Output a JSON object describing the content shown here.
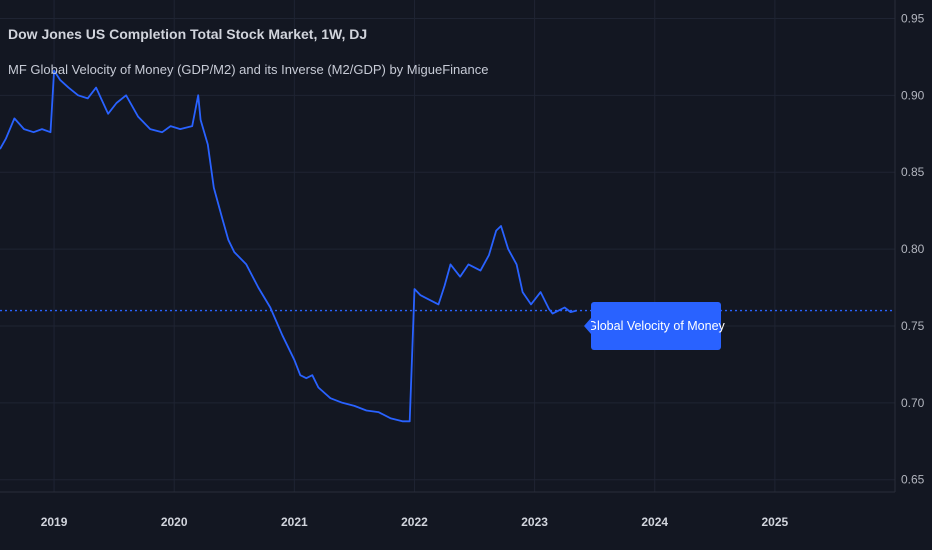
{
  "header": {
    "title": "Dow Jones US Completion Total Stock Market, 1W, DJ",
    "subtitle": "MF Global Velocity of Money (GDP/M2) and its Inverse (M2/GDP) by MigueFinance"
  },
  "colors": {
    "background": "#131722",
    "line": "#2962ff",
    "grid": "#1f2433",
    "label_bg": "#2962ff"
  },
  "chart_data": {
    "type": "line",
    "series": [
      {
        "name": "Global Velocity of Money",
        "x": [
          2018.55,
          2018.6,
          2018.67,
          2018.75,
          2018.83,
          2018.9,
          2018.97,
          2019.0,
          2019.05,
          2019.12,
          2019.2,
          2019.28,
          2019.35,
          2019.45,
          2019.52,
          2019.6,
          2019.7,
          2019.8,
          2019.9,
          2019.97,
          2020.05,
          2020.15,
          2020.2,
          2020.22,
          2020.28,
          2020.33,
          2020.4,
          2020.45,
          2020.5,
          2020.6,
          2020.7,
          2020.8,
          2020.9,
          2021.0,
          2021.05,
          2021.1,
          2021.15,
          2021.2,
          2021.3,
          2021.4,
          2021.5,
          2021.6,
          2021.7,
          2021.8,
          2021.9,
          2021.96,
          2022.0,
          2022.05,
          2022.1,
          2022.2,
          2022.25,
          2022.3,
          2022.38,
          2022.45,
          2022.55,
          2022.62,
          2022.68,
          2022.72,
          2022.78,
          2022.85,
          2022.9,
          2022.97,
          2023.05,
          2023.12,
          2023.15,
          2023.2,
          2023.25,
          2023.3,
          2023.35
        ],
        "y": [
          0.865,
          0.872,
          0.885,
          0.878,
          0.876,
          0.878,
          0.876,
          0.916,
          0.91,
          0.905,
          0.9,
          0.898,
          0.905,
          0.888,
          0.895,
          0.9,
          0.886,
          0.878,
          0.876,
          0.88,
          0.878,
          0.88,
          0.9,
          0.884,
          0.868,
          0.84,
          0.82,
          0.806,
          0.798,
          0.79,
          0.775,
          0.762,
          0.744,
          0.728,
          0.718,
          0.716,
          0.718,
          0.71,
          0.703,
          0.7,
          0.698,
          0.695,
          0.694,
          0.69,
          0.688,
          0.688,
          0.774,
          0.77,
          0.768,
          0.764,
          0.776,
          0.79,
          0.782,
          0.79,
          0.786,
          0.796,
          0.812,
          0.815,
          0.8,
          0.79,
          0.772,
          0.764,
          0.772,
          0.761,
          0.758,
          0.76,
          0.762,
          0.759,
          0.76
        ]
      }
    ],
    "last_value": 0.76,
    "label": "Global Velocity of Money",
    "ylim": [
      0.642,
      0.962
    ],
    "xlim": [
      2018.55,
      2026.0
    ],
    "y_ticks": [
      0.65,
      0.7,
      0.75,
      0.8,
      0.85,
      0.9,
      0.95
    ],
    "y_tick_labels": [
      "0.65",
      "0.70",
      "0.75",
      "0.80",
      "0.85",
      "0.90",
      "0.95"
    ],
    "x_ticks": [
      2019,
      2020,
      2021,
      2022,
      2023,
      2024,
      2025
    ],
    "x_tick_labels": [
      "2019",
      "2020",
      "2021",
      "2022",
      "2023",
      "2024",
      "2025"
    ],
    "grid": true,
    "xlabel": "",
    "ylabel": ""
  }
}
